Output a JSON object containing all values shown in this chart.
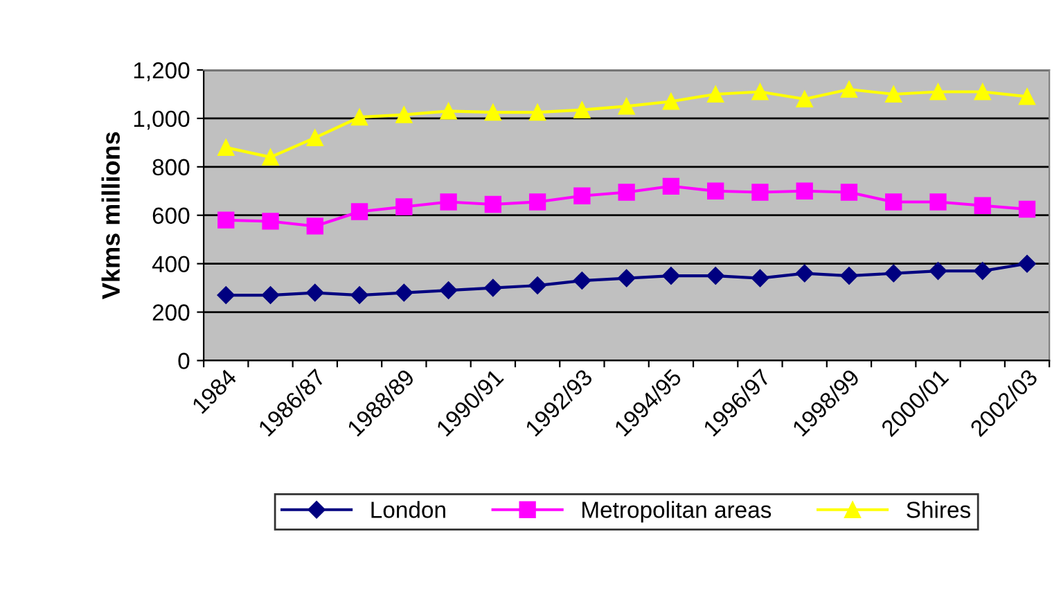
{
  "chart_data": {
    "type": "line",
    "ylabel": "Vkms millions",
    "categories": [
      "1984",
      null,
      "1986/87",
      null,
      "1988/89",
      null,
      "1990/91",
      null,
      "1992/93",
      null,
      "1994/95",
      null,
      "1996/97",
      null,
      "1998/99",
      null,
      "2000/01",
      null,
      "2002/03"
    ],
    "series": [
      {
        "name": "London",
        "color": "#000080",
        "marker": "diamond",
        "values": [
          270,
          270,
          280,
          270,
          280,
          290,
          300,
          310,
          330,
          340,
          350,
          350,
          340,
          360,
          350,
          360,
          370,
          370,
          400
        ]
      },
      {
        "name": "Metropolitan areas",
        "color": "#ff00ff",
        "marker": "square",
        "values": [
          580,
          575,
          555,
          615,
          635,
          655,
          645,
          655,
          680,
          695,
          720,
          700,
          695,
          700,
          695,
          655,
          655,
          640,
          625
        ]
      },
      {
        "name": "Shires",
        "color": "#ffff00",
        "marker": "triangle",
        "values": [
          880,
          840,
          920,
          1005,
          1015,
          1030,
          1025,
          1025,
          1035,
          1050,
          1070,
          1100,
          1110,
          1080,
          1120,
          1100,
          1110,
          1110,
          1090
        ]
      }
    ],
    "ylim": [
      0,
      1200
    ],
    "yticks": [
      {
        "value": 0,
        "label": "0"
      },
      {
        "value": 200,
        "label": "200"
      },
      {
        "value": 400,
        "label": "400"
      },
      {
        "value": 600,
        "label": "600"
      },
      {
        "value": 800,
        "label": "800"
      },
      {
        "value": 1000,
        "label": "1,000"
      },
      {
        "value": 1200,
        "label": "1,200"
      }
    ],
    "grid": "y",
    "legend": "bottom",
    "line_style": "solid"
  }
}
